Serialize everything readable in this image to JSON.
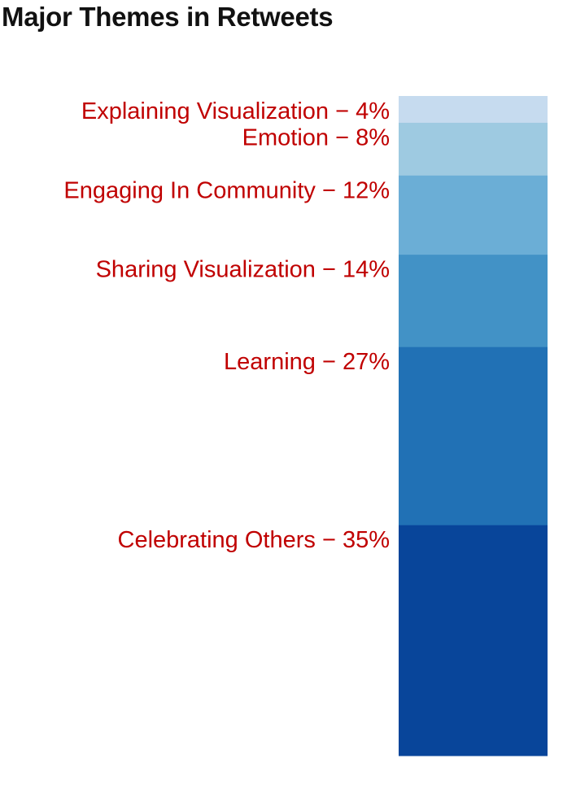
{
  "chart_data": {
    "type": "bar",
    "title": "Major Themes in Retweets",
    "orientation": "stacked-vertical",
    "segments": [
      {
        "name": "Explaining Visualization",
        "value": 4,
        "label": "Explaining Visualization − 4%",
        "color": "#c6dbef"
      },
      {
        "name": "Emotion",
        "value": 8,
        "label": "Emotion − 8%",
        "color": "#9ecae1"
      },
      {
        "name": "Engaging In Community",
        "value": 12,
        "label": "Engaging In Community − 12%",
        "color": "#6baed6"
      },
      {
        "name": "Sharing Visualization",
        "value": 14,
        "label": "Sharing Visualization − 14%",
        "color": "#4292c6"
      },
      {
        "name": "Learning",
        "value": 27,
        "label": "Learning − 27%",
        "color": "#2171b5"
      },
      {
        "name": "Celebrating Others",
        "value": 35,
        "label": "Celebrating Others − 35%",
        "color": "#08459a"
      }
    ],
    "residual_color": "#eff3ff",
    "label_color": "#c00000",
    "ylim": [
      0,
      100
    ]
  }
}
